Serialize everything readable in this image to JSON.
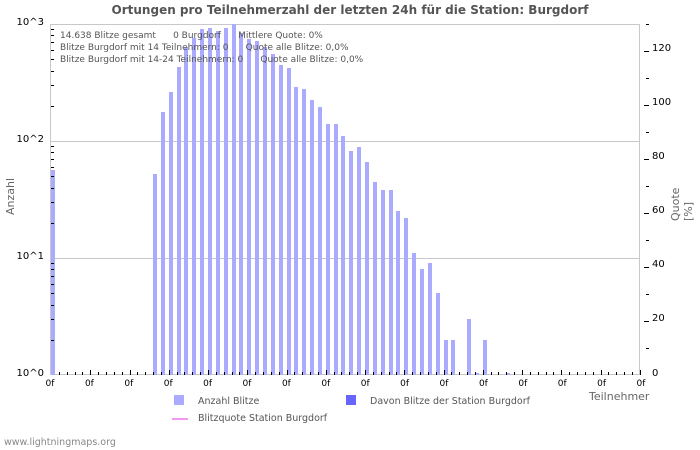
{
  "chart_data": {
    "type": "bar",
    "title": "Ortungen pro Teilnehmerzahl der letzten 24h für die Station: Burgdorf",
    "xlabel": "Teilnehmer",
    "ylabel": "Anzahl",
    "ylabel_right": "Quote [%]",
    "yscale": "log",
    "ylim": [
      1,
      1000
    ],
    "ylim_right": [
      0,
      130
    ],
    "y_ticks_left": [
      "10^3",
      "10^2",
      "10^1",
      "10^0"
    ],
    "y_ticks_right": [
      "120",
      "100",
      "80",
      "60",
      "40",
      "20",
      "0"
    ],
    "x_tick_labels": [
      "0f",
      "0f",
      "0f",
      "0f",
      "0f",
      "0f",
      "0f",
      "0f",
      "0f",
      "0f",
      "0f",
      "0f",
      "0f",
      "0f",
      "0f",
      "0f"
    ],
    "grid": true,
    "legend_position": "bottom",
    "legend": [
      "Anzahl Blitze",
      "Davon Blitze der Station Burgdorf",
      "Blitzquote Station Burgdorf"
    ],
    "series": [
      {
        "name": "Anzahl Blitze",
        "color": "#aaaaff",
        "slots": [
          0,
          13,
          14,
          15,
          16,
          17,
          18,
          19,
          20,
          21,
          22,
          23,
          24,
          25,
          26,
          27,
          28,
          29,
          30,
          31,
          32,
          33,
          34,
          35,
          36,
          37,
          38,
          39,
          40,
          41,
          42,
          43,
          44,
          45,
          46,
          47,
          48,
          49,
          50,
          51,
          53,
          54,
          55,
          58
        ],
        "values": [
          57,
          52,
          177,
          262,
          430,
          630,
          760,
          900,
          920,
          870,
          920,
          1000,
          840,
          740,
          720,
          630,
          550,
          450,
          420,
          290,
          280,
          225,
          195,
          140,
          140,
          110,
          82,
          89,
          66,
          45,
          38,
          38,
          25,
          22,
          11,
          8,
          9,
          5,
          2,
          2,
          3,
          1,
          2,
          1
        ]
      },
      {
        "name": "Davon Blitze der Station Burgdorf",
        "color": "#6666ff",
        "values": []
      },
      {
        "name": "Blitzquote Station Burgdorf",
        "color": "#ee99ee",
        "values": []
      }
    ]
  },
  "header": {
    "title": "Ortungen pro Teilnehmerzahl der letzten 24h für die Station: Burgdorf"
  },
  "info": {
    "line1": "14.638 Blitze gesamt      0 Burgdorf      Mittlere Quote: 0%",
    "line2": "Blitze Burgdorf mit 14 Teilnehmern: 0      Quote alle Blitze: 0,0%",
    "line3": "Blitze Burgdorf mit 14-24 Teilnehmern: 0      Quote alle Blitze: 0,0%"
  },
  "axes": {
    "left_title": "Anzahl",
    "right_title": "Quote [%]",
    "x_title": "Teilnehmer",
    "left_ticks": [
      "10^3",
      "10^2",
      "10^1",
      "10^0"
    ],
    "right_ticks": [
      "120",
      "100",
      "80",
      "60",
      "40",
      "20",
      "0"
    ],
    "x_label": "0f"
  },
  "legend": {
    "item1": "Anzahl Blitze",
    "item2": "Davon Blitze der Station Burgdorf",
    "item3": "Blitzquote Station Burgdorf",
    "color1": "#aaaaff",
    "color2": "#6666ff",
    "color3": "#ee99ee"
  },
  "footer": {
    "text": "www.lightningmaps.org"
  }
}
